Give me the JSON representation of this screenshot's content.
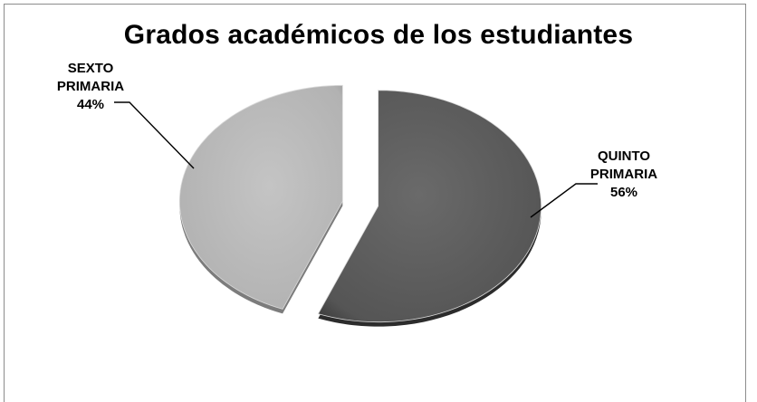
{
  "chart_data": {
    "type": "pie",
    "title": "Grados académicos de los estudiantes",
    "categories": [
      "QUINTO PRIMARIA",
      "SEXTO PRIMARIA"
    ],
    "values": [
      56,
      44
    ],
    "labels": [
      {
        "name_line1": "QUINTO",
        "name_line2": "PRIMARIA",
        "percent": "56%"
      },
      {
        "name_line1": "SEXTO",
        "name_line2": "PRIMARIA",
        "percent": "44%"
      }
    ],
    "colors": [
      "#5a5a5a",
      "#b4b4b4"
    ],
    "exploded": true,
    "style": "3d-shaded"
  }
}
